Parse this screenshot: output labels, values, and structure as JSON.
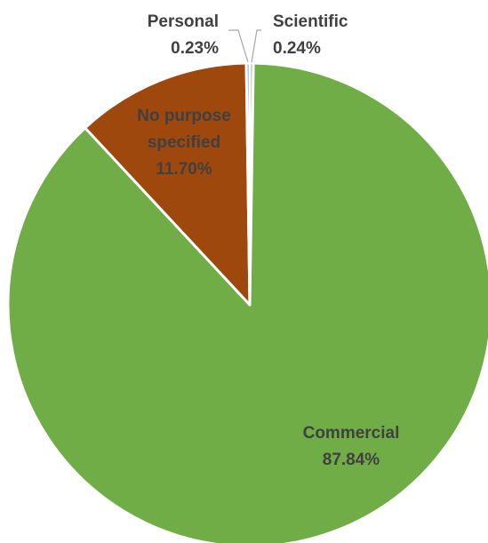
{
  "chart_data": {
    "type": "pie",
    "title": "",
    "slices": [
      {
        "label": "Scientific",
        "value": 0.24,
        "value_label": "0.24%",
        "color": "#a5a5a5"
      },
      {
        "label": "Commercial",
        "value": 87.84,
        "value_label": "87.84%",
        "color": "#70ad47"
      },
      {
        "label": "No purpose specified",
        "label_lines": [
          "No purpose",
          "specified"
        ],
        "value": 11.7,
        "value_label": "11.70%",
        "color": "#9e480e"
      },
      {
        "label": "Personal",
        "value": 0.23,
        "value_label": "0.23%",
        "color": "#5b9bd5"
      }
    ],
    "start_angle": "12 o'clock",
    "direction": "clockwise",
    "data_labels": "category name and percentage",
    "label_colors": {
      "Scientific": "#404040",
      "Commercial": "#404040",
      "No purpose specified": "#404040",
      "Personal": "#404040"
    },
    "legend": "none"
  }
}
